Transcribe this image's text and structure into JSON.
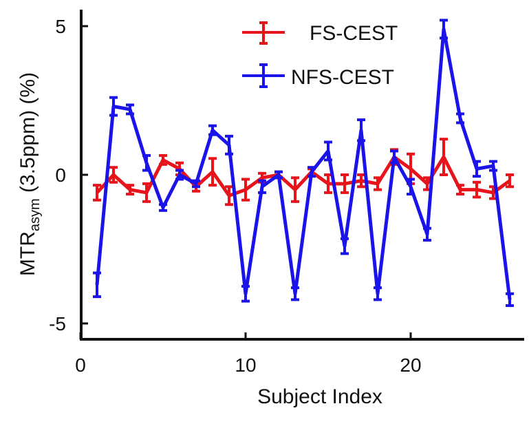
{
  "chart_data": {
    "type": "line",
    "title": "",
    "xlabel": "Subject Index",
    "ylabel": {
      "main": "MTR",
      "subscript": "asym",
      "rest": " (3.5ppm) (%)"
    },
    "xlim": [
      0,
      27
    ],
    "ylim": [
      -5.5,
      5.5
    ],
    "xticks": [
      0,
      10,
      20
    ],
    "xtick_labels": [
      "0",
      "10",
      "20"
    ],
    "yticks": [
      5,
      0,
      -5
    ],
    "ytick_labels": [
      "5",
      "0",
      "-5"
    ],
    "grid": false,
    "legend_position": "top-right",
    "x": [
      1,
      2,
      3,
      4,
      5,
      6,
      7,
      8,
      9,
      10,
      11,
      12,
      13,
      14,
      15,
      16,
      17,
      18,
      19,
      20,
      21,
      22,
      23,
      24,
      25,
      26
    ],
    "series": [
      {
        "name": "FS-CEST",
        "color": "#e8141b",
        "values": [
          -0.6,
          0.0,
          -0.5,
          -0.6,
          0.5,
          0.2,
          -0.4,
          0.1,
          -0.7,
          -0.5,
          -0.1,
          0.0,
          -0.5,
          0.1,
          -0.3,
          -0.3,
          -0.2,
          -0.3,
          0.6,
          0.2,
          -0.3,
          0.6,
          -0.5,
          -0.5,
          -0.6,
          -0.2
        ],
        "errors": [
          0.25,
          0.25,
          0.15,
          0.3,
          0.15,
          0.2,
          0.15,
          0.45,
          0.3,
          0.35,
          0.15,
          0.1,
          0.4,
          0.1,
          0.3,
          0.3,
          0.2,
          0.2,
          0.25,
          0.5,
          0.2,
          0.6,
          0.15,
          0.25,
          0.2,
          0.2
        ]
      },
      {
        "name": "NFS-CEST",
        "color": "#1a14e8",
        "values": [
          -3.7,
          2.3,
          2.2,
          0.4,
          -1.1,
          0.0,
          -0.3,
          1.5,
          1.0,
          -4.0,
          -0.4,
          0.0,
          -4.0,
          0.1,
          0.8,
          -2.4,
          1.5,
          -4.0,
          0.6,
          -0.4,
          -2.0,
          4.9,
          1.9,
          0.2,
          0.3,
          -4.2
        ],
        "errors": [
          0.4,
          0.3,
          0.15,
          0.25,
          0.1,
          0.15,
          0.1,
          0.15,
          0.3,
          0.25,
          0.2,
          0.1,
          0.2,
          0.15,
          0.3,
          0.25,
          0.35,
          0.2,
          0.2,
          0.25,
          0.2,
          0.3,
          0.15,
          0.25,
          0.15,
          0.2
        ]
      }
    ]
  }
}
